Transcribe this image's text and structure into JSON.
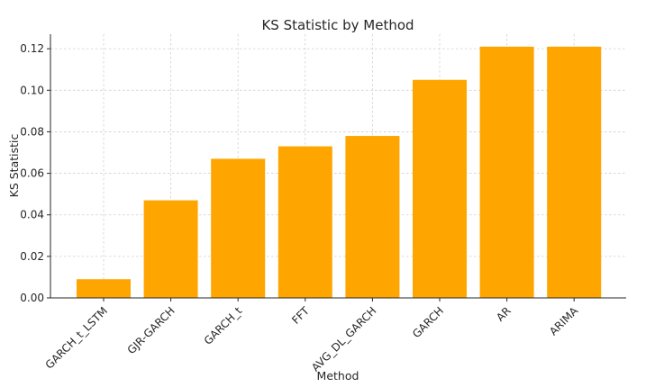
{
  "chart_data": {
    "type": "bar",
    "title": "KS Statistic by Method",
    "xlabel": "Method",
    "ylabel": "KS Statistic",
    "categories": [
      "GARCH_t_LSTM",
      "GJR-GARCH",
      "GARCH_t",
      "FFT",
      "AVG_DL_GARCH",
      "GARCH",
      "AR",
      "ARIMA"
    ],
    "values": [
      0.009,
      0.047,
      0.067,
      0.073,
      0.078,
      0.105,
      0.121,
      0.121
    ],
    "ylim": [
      0,
      0.127
    ],
    "yticks": [
      "0.00",
      "0.02",
      "0.04",
      "0.06",
      "0.08",
      "0.10",
      "0.12"
    ],
    "grid": true,
    "bar_color": "#FFA500"
  }
}
